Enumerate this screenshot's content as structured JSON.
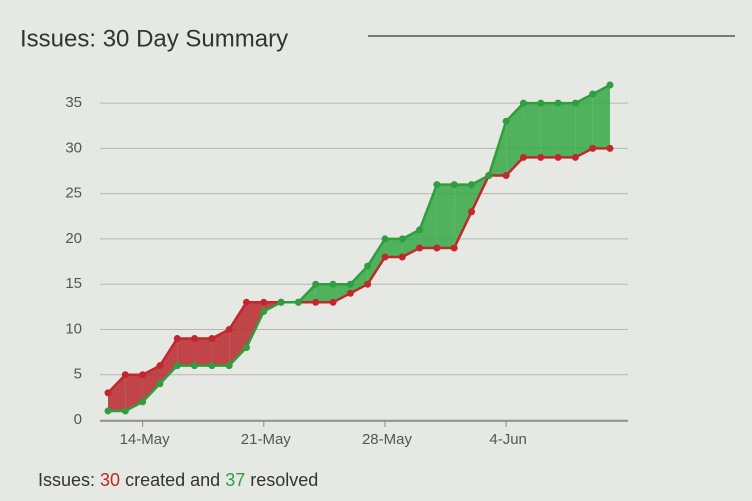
{
  "chart_data": {
    "type": "line",
    "title": "Issues: 30 Day Summary",
    "categories": [
      null,
      null,
      "14-May",
      null,
      null,
      null,
      null,
      null,
      null,
      "21-May",
      null,
      null,
      null,
      null,
      null,
      null,
      "28-May",
      null,
      null,
      null,
      null,
      null,
      null,
      "4-Jun",
      null,
      null,
      null,
      null,
      null,
      null
    ],
    "series": [
      {
        "name": "created",
        "color": "#c0282d",
        "values": [
          3,
          5,
          5,
          6,
          9,
          9,
          9,
          10,
          13,
          13,
          13,
          13,
          13,
          13,
          14,
          15,
          18,
          18,
          19,
          19,
          19,
          23,
          27,
          27,
          29,
          29,
          29,
          29,
          30,
          30
        ]
      },
      {
        "name": "resolved",
        "color": "#2e9e3e",
        "values": [
          1,
          1,
          2,
          4,
          6,
          6,
          6,
          6,
          8,
          12,
          13,
          13,
          15,
          15,
          15,
          17,
          20,
          20,
          21,
          26,
          26,
          26,
          27,
          33,
          35,
          35,
          35,
          35,
          36,
          37
        ]
      }
    ],
    "ylim": [
      0,
      37
    ],
    "yticks": [
      0,
      5,
      10,
      15,
      20,
      25,
      30,
      35
    ],
    "grid": true,
    "footer": {
      "prefix": "Issues:",
      "created": 30,
      "middle": "created and",
      "resolved": 37,
      "suffix": "resolved"
    }
  }
}
